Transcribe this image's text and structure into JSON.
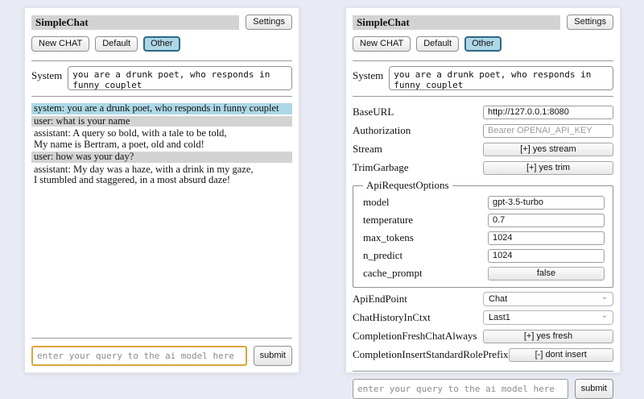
{
  "colors": {
    "page_background": "#e9ebf4",
    "titlebar_background": "#d3d3d3",
    "system_message_background": "#add8e6",
    "user_message_background": "#d3d3d3",
    "active_session_background": "#aed7e6",
    "focused_input_border": "#dba43c"
  },
  "left": {
    "title": "SimpleChat",
    "settings_button": "Settings",
    "new_chat_button": "New CHAT",
    "session_default": "Default",
    "session_other": "Other",
    "system_label": "System",
    "system_value": "you are a drunk poet, who responds in funny couplet",
    "messages": [
      {
        "role": "system",
        "lines": [
          "system: you are a drunk poet, who responds in funny couplet"
        ]
      },
      {
        "role": "user",
        "lines": [
          "user: what is your name"
        ]
      },
      {
        "role": "assistant",
        "lines": [
          "assistant: A query so bold, with a tale to be told,",
          "My name is Bertram, a poet, old and cold!"
        ]
      },
      {
        "role": "user",
        "lines": [
          "user: how was your day?"
        ]
      },
      {
        "role": "assistant",
        "lines": [
          "assistant: My day was a haze, with a drink in my gaze,",
          "I stumbled and staggered, in a most absurd daze!"
        ]
      }
    ],
    "query_placeholder": "enter your query to the ai model here",
    "submit_button": "submit"
  },
  "right": {
    "title": "SimpleChat",
    "settings_button": "Settings",
    "new_chat_button": "New CHAT",
    "session_default": "Default",
    "session_other": "Other",
    "system_label": "System",
    "system_value": "you are a drunk poet, who responds in funny couplet",
    "settings": {
      "base_url": {
        "label": "BaseURL",
        "value": "http://127.0.0.1:8080"
      },
      "authorization": {
        "label": "Authorization",
        "placeholder": "Bearer OPENAI_API_KEY"
      },
      "stream": {
        "label": "Stream",
        "value": "[+] yes stream"
      },
      "trim_garbage": {
        "label": "TrimGarbage",
        "value": "[+] yes trim"
      },
      "api_request_options": {
        "legend": "ApiRequestOptions",
        "model": {
          "label": "model",
          "value": "gpt-3.5-turbo"
        },
        "temperature": {
          "label": "temperature",
          "value": "0.7"
        },
        "max_tokens": {
          "label": "max_tokens",
          "value": "1024"
        },
        "n_predict": {
          "label": "n_predict",
          "value": "1024"
        },
        "cache_prompt": {
          "label": "cache_prompt",
          "value": "false"
        }
      },
      "api_endpoint": {
        "label": "ApiEndPoint",
        "value": "Chat"
      },
      "chat_history_in_ctxt": {
        "label": "ChatHistoryInCtxt",
        "value": "Last1"
      },
      "completion_fresh_chat_always": {
        "label": "CompletionFreshChatAlways",
        "value": "[+] yes fresh"
      },
      "completion_insert_standard_role_prefix": {
        "label": "CompletionInsertStandardRolePrefix",
        "value": "[-] dont insert"
      }
    },
    "query_placeholder": "enter your query to the ai model here",
    "submit_button": "submit"
  }
}
